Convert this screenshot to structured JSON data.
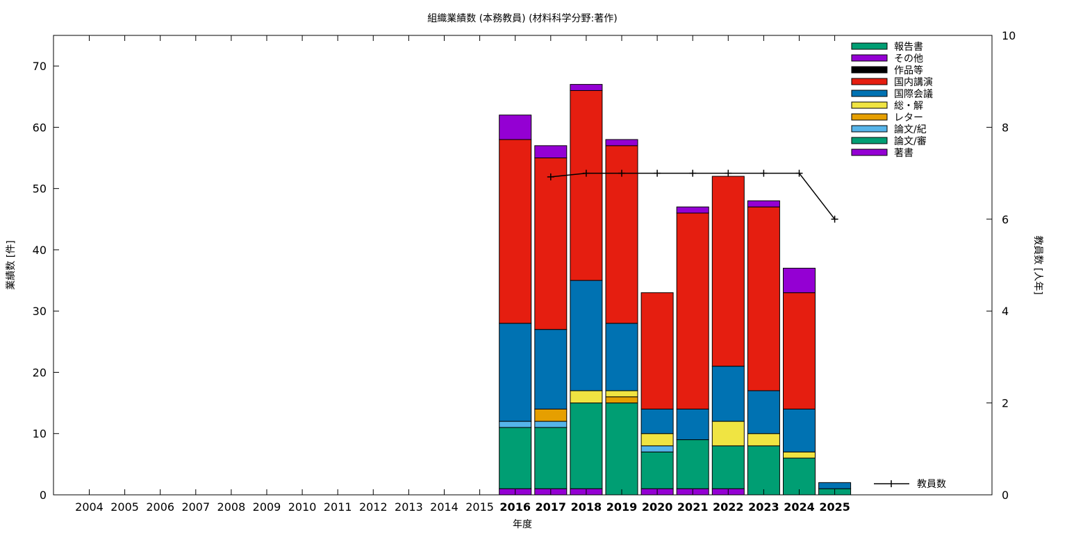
{
  "chart_data": {
    "type": "bar",
    "title": "組織業績数 (本務教員) (材料科学分野:著作)",
    "xlabel": "年度",
    "ylabel": "業績数 [件]",
    "y2label": "教員数 [人年]",
    "ylim": [
      0,
      75
    ],
    "y2lim": [
      0,
      10
    ],
    "yticks": [
      0,
      10,
      20,
      30,
      40,
      50,
      60,
      70
    ],
    "y2ticks": [
      0,
      2,
      4,
      6,
      8,
      10
    ],
    "stacked": true,
    "legend_position": "top-right",
    "categories": [
      "2004",
      "2005",
      "2006",
      "2007",
      "2008",
      "2009",
      "2010",
      "2011",
      "2012",
      "2013",
      "2014",
      "2015",
      "2016",
      "2017",
      "2018",
      "2019",
      "2020",
      "2021",
      "2022",
      "2023",
      "2024",
      "2025"
    ],
    "bold_categories": [
      "2016",
      "2017",
      "2018",
      "2019",
      "2020",
      "2021",
      "2022",
      "2023",
      "2024",
      "2025"
    ],
    "series": [
      {
        "name": "著書",
        "color": "#9400d3",
        "values": [
          0,
          0,
          0,
          0,
          0,
          0,
          0,
          0,
          0,
          0,
          0,
          0,
          1,
          1,
          1,
          0,
          1,
          1,
          1,
          0,
          0,
          0
        ]
      },
      {
        "name": "論文/審",
        "color": "#009e73",
        "values": [
          0,
          0,
          0,
          0,
          0,
          0,
          0,
          0,
          0,
          0,
          0,
          0,
          10,
          10,
          14,
          15,
          6,
          8,
          7,
          8,
          6,
          1
        ]
      },
      {
        "name": "論文/紀",
        "color": "#56b4e9",
        "values": [
          0,
          0,
          0,
          0,
          0,
          0,
          0,
          0,
          0,
          0,
          0,
          0,
          1,
          1,
          0,
          0,
          1,
          0,
          0,
          0,
          0,
          0
        ]
      },
      {
        "name": "レター",
        "color": "#e69f00",
        "values": [
          0,
          0,
          0,
          0,
          0,
          0,
          0,
          0,
          0,
          0,
          0,
          0,
          0,
          2,
          0,
          1,
          0,
          0,
          0,
          0,
          0,
          0
        ]
      },
      {
        "name": "総・解",
        "color": "#f0e442",
        "values": [
          0,
          0,
          0,
          0,
          0,
          0,
          0,
          0,
          0,
          0,
          0,
          0,
          0,
          0,
          2,
          1,
          2,
          0,
          4,
          2,
          1,
          0
        ]
      },
      {
        "name": "国際会議",
        "color": "#0072b2",
        "values": [
          0,
          0,
          0,
          0,
          0,
          0,
          0,
          0,
          0,
          0,
          0,
          0,
          16,
          13,
          18,
          11,
          4,
          5,
          9,
          7,
          7,
          1
        ]
      },
      {
        "name": "国内講演",
        "color": "#e51e10",
        "values": [
          0,
          0,
          0,
          0,
          0,
          0,
          0,
          0,
          0,
          0,
          0,
          0,
          30,
          28,
          31,
          29,
          19,
          32,
          31,
          30,
          19,
          0
        ]
      },
      {
        "name": "作品等",
        "color": "#000000",
        "values": [
          0,
          0,
          0,
          0,
          0,
          0,
          0,
          0,
          0,
          0,
          0,
          0,
          0,
          0,
          0,
          0,
          0,
          0,
          0,
          0,
          0,
          0
        ]
      },
      {
        "name": "その他",
        "color": "#9400d3",
        "values": [
          0,
          0,
          0,
          0,
          0,
          0,
          0,
          0,
          0,
          0,
          0,
          0,
          4,
          2,
          1,
          1,
          0,
          1,
          0,
          1,
          4,
          0
        ]
      },
      {
        "name": "報告書",
        "color": "#009e73",
        "values": [
          0,
          0,
          0,
          0,
          0,
          0,
          0,
          0,
          0,
          0,
          0,
          0,
          0,
          0,
          0,
          0,
          0,
          0,
          0,
          0,
          0,
          0
        ]
      }
    ],
    "line_series": {
      "name": "教員数",
      "color": "#000000",
      "axis": "y2",
      "x": [
        "2017",
        "2018",
        "2019",
        "2020",
        "2021",
        "2022",
        "2023",
        "2024",
        "2025"
      ],
      "values": [
        6.92,
        7,
        7,
        7,
        7,
        7,
        7,
        7,
        6
      ]
    }
  }
}
